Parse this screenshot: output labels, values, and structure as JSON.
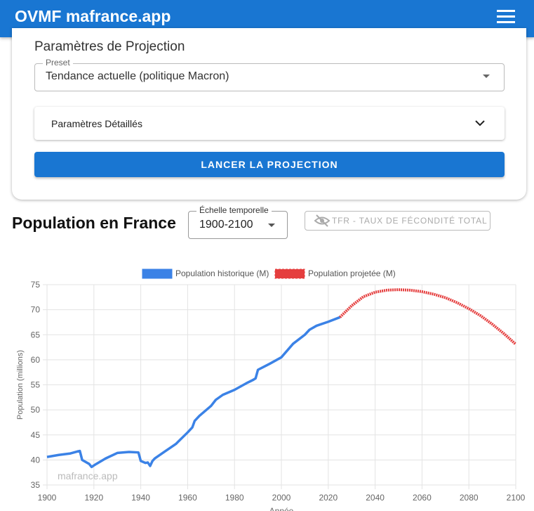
{
  "header": {
    "title": "OVMF mafrance.app"
  },
  "params": {
    "title": "Paramètres de Projection",
    "preset_label": "Preset",
    "preset_value": "Tendance actuelle (politique Macron)",
    "details": "Paramètres Détaillés",
    "button": "LANCER LA PROJECTION"
  },
  "section": {
    "title": "Population en France",
    "scale_label": "Échelle temporelle",
    "scale_value": "1900-2100",
    "tfr_button": "TFR - TAUX DE FÉCONDITÉ TOTAL"
  },
  "chart_data": {
    "type": "line",
    "x_label": "Année",
    "y_label": "Population (millions)",
    "watermark": "mafrance.app",
    "xlim": [
      1900,
      2100
    ],
    "xticks": [
      1900,
      1920,
      1940,
      1960,
      1980,
      2000,
      2020,
      2040,
      2060,
      2080,
      2100
    ],
    "ylim": [
      35,
      75
    ],
    "yticks": [
      35,
      40,
      45,
      50,
      55,
      60,
      65,
      70,
      75
    ],
    "grid": true,
    "series": [
      {
        "name": "Population historique (M)",
        "color": "#3b82e6",
        "x": [
          1900,
          1905,
          1910,
          1913,
          1914,
          1915,
          1918,
          1919,
          1920,
          1921,
          1925,
          1930,
          1935,
          1939,
          1940,
          1942,
          1943,
          1944,
          1945,
          1946,
          1950,
          1955,
          1960,
          1962,
          1963,
          1965,
          1970,
          1972,
          1975,
          1980,
          1985,
          1988,
          1989,
          1990,
          1995,
          2000,
          2005,
          2010,
          2012,
          2015,
          2020,
          2025
        ],
        "values": [
          40.6,
          41.0,
          41.3,
          41.7,
          41.8,
          40.0,
          39.2,
          38.6,
          38.9,
          39.2,
          40.3,
          41.4,
          41.6,
          41.5,
          39.8,
          39.4,
          39.5,
          38.8,
          39.8,
          40.3,
          41.6,
          43.2,
          45.5,
          46.5,
          47.8,
          48.8,
          50.8,
          52.0,
          53.0,
          54.0,
          55.3,
          56.0,
          56.3,
          58.0,
          59.2,
          60.5,
          63.2,
          65.0,
          66.0,
          66.8,
          67.6,
          68.5
        ]
      },
      {
        "name": "Population projetée (M)",
        "color": "#e53e3e",
        "x": [
          2025,
          2030,
          2035,
          2040,
          2045,
          2050,
          2055,
          2060,
          2065,
          2070,
          2075,
          2080,
          2085,
          2090,
          2095,
          2100
        ],
        "values": [
          68.5,
          70.8,
          72.6,
          73.5,
          73.9,
          74.0,
          73.9,
          73.6,
          73.1,
          72.4,
          71.4,
          70.2,
          68.8,
          67.1,
          65.2,
          63.1
        ]
      }
    ]
  }
}
